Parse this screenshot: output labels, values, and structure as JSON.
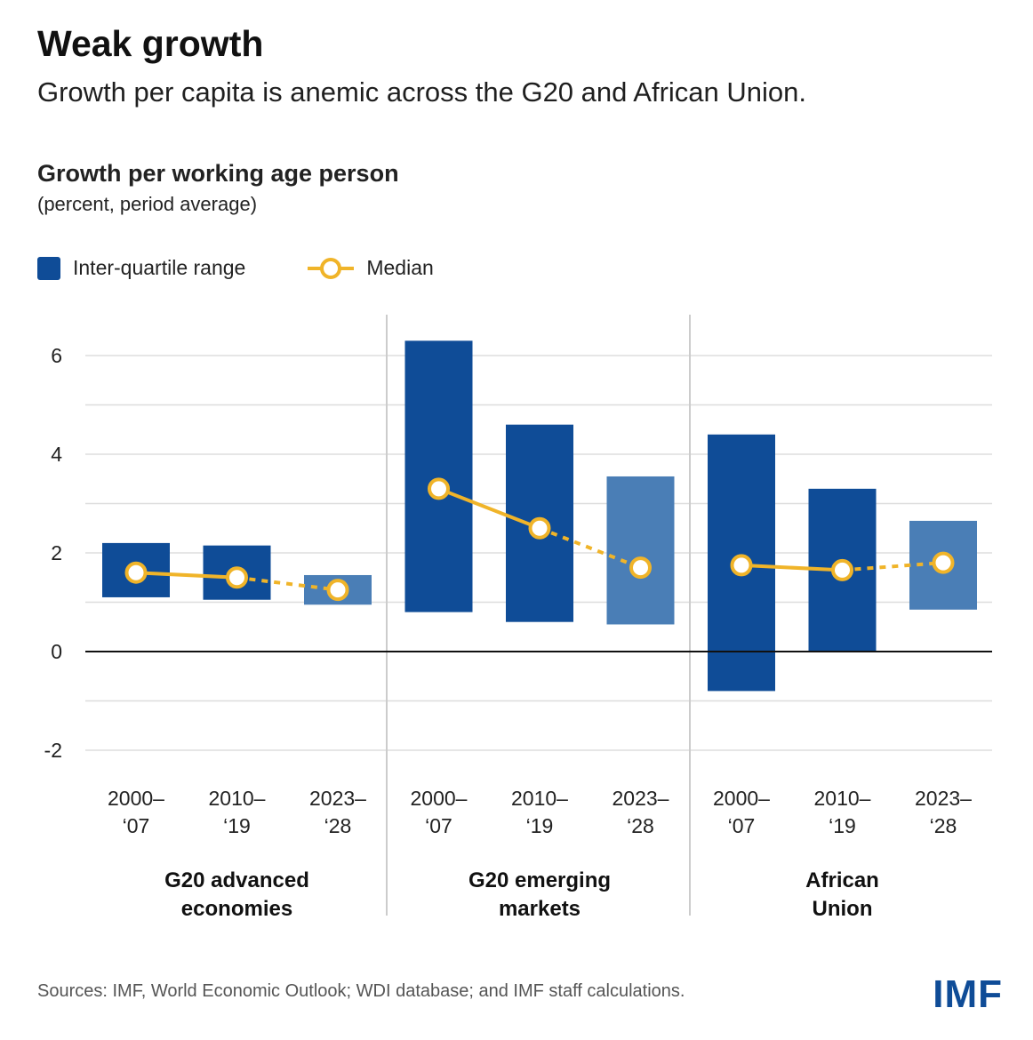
{
  "title": "Weak growth",
  "subtitle": "Growth per capita is anemic across the G20 and African Union.",
  "source": "Sources: IMF, World Economic Outlook; WDI database; and IMF staff calculations.",
  "logo": "IMF",
  "colors": {
    "iqr_dark": "#0f4c97",
    "iqr_light": "#4a7eb6",
    "median": "#f0b429",
    "zero_line": "#111111",
    "grid": "#dddddd"
  },
  "chart_data": {
    "type": "bar",
    "title": "Growth per working age person",
    "units": "(percent, period average)",
    "ylim": [
      -2.5,
      6.5
    ],
    "yticks": [
      -2,
      0,
      2,
      4,
      6
    ],
    "grid": true,
    "legend": {
      "position": "top-left",
      "items": [
        "Inter-quartile range",
        "Median"
      ]
    },
    "groups": [
      {
        "label": [
          "G20 advanced",
          "economies"
        ],
        "periods": [
          {
            "label": [
              "2000–",
              "‘07"
            ],
            "q1": 1.1,
            "q3": 2.2,
            "median": 1.6,
            "projection": false
          },
          {
            "label": [
              "2010–",
              "‘19"
            ],
            "q1": 1.05,
            "q3": 2.15,
            "median": 1.5,
            "projection": false
          },
          {
            "label": [
              "2023–",
              "‘28"
            ],
            "q1": 0.95,
            "q3": 1.55,
            "median": 1.25,
            "projection": true
          }
        ]
      },
      {
        "label": [
          "G20 emerging",
          "markets"
        ],
        "periods": [
          {
            "label": [
              "2000–",
              "‘07"
            ],
            "q1": 0.8,
            "q3": 6.3,
            "median": 3.3,
            "projection": false
          },
          {
            "label": [
              "2010–",
              "‘19"
            ],
            "q1": 0.6,
            "q3": 4.6,
            "median": 2.5,
            "projection": false
          },
          {
            "label": [
              "2023–",
              "‘28"
            ],
            "q1": 0.55,
            "q3": 3.55,
            "median": 1.7,
            "projection": true
          }
        ]
      },
      {
        "label": [
          "African",
          "Union"
        ],
        "periods": [
          {
            "label": [
              "2000–",
              "‘07"
            ],
            "q1": -0.8,
            "q3": 4.4,
            "median": 1.75,
            "projection": false
          },
          {
            "label": [
              "2010–",
              "‘19"
            ],
            "q1": 0.0,
            "q3": 3.3,
            "median": 1.65,
            "projection": false
          },
          {
            "label": [
              "2023–",
              "‘28"
            ],
            "q1": 0.85,
            "q3": 2.65,
            "median": 1.8,
            "projection": true
          }
        ]
      }
    ]
  }
}
